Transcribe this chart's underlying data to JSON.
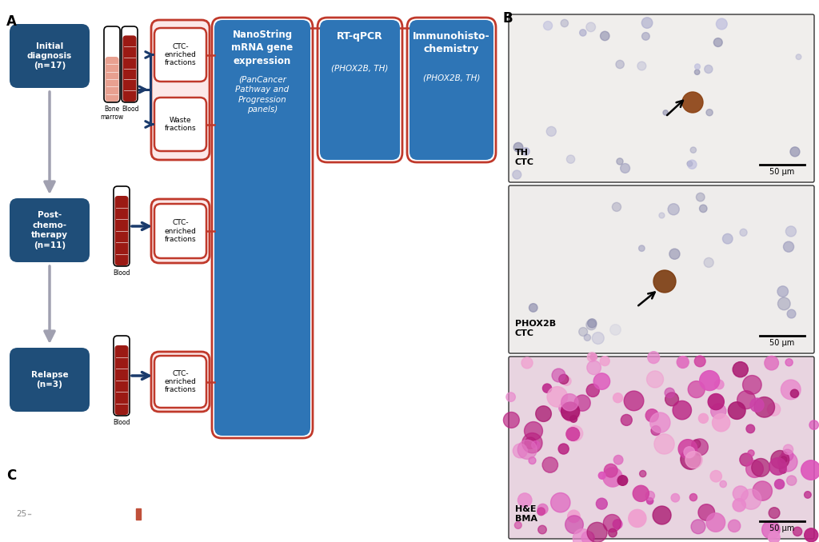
{
  "fig_width": 10.24,
  "fig_height": 6.78,
  "bg_color": "#ffffff",
  "panel_A_label": "A",
  "panel_B_label": "B",
  "panel_C_label": "C",
  "dark_blue": "#1f4e79",
  "medium_blue": "#2e75b6",
  "light_blue_box": "#4a86c8",
  "red_border": "#c0392b",
  "light_red_fill": "#f5e6e6",
  "pink_fill": "#fce8e8",
  "gray_arrow": "#a0a0b0",
  "dark_blue_arrow": "#1a3a6b",
  "diagnosis_text": "Initial\ndiagnosis\n(n=17)",
  "therapy_text": "Post-\nchemo-\ntherapy\n(n=11)",
  "relapse_text": "Relapse\n(n=3)",
  "nanostring_title": "NanoString\nmRNA gene\nexpression",
  "nanostring_sub": "(PanCancer\nPathway and\nProgression\npanels)",
  "rtqpcr_title": "RT-qPCR",
  "rtqpcr_sub": "(PHOX2B, TH)",
  "ihc_title": "Immunohisto-\nchemistry",
  "ihc_sub": "(PHOX2B, TH)",
  "ctc_enriched_text": "CTC-\nenriched\nfractions",
  "waste_fractions_text": "Waste\nfractions",
  "bone_marrow_label": "Bone\nmarrow",
  "blood_label": "Blood",
  "th_ctc_label": "TH\nCTC",
  "phox2b_ctc_label": "PHOX2B\nCTC",
  "he_bma_label": "H&E\nBMA",
  "scale_bar_text": "50 μm"
}
